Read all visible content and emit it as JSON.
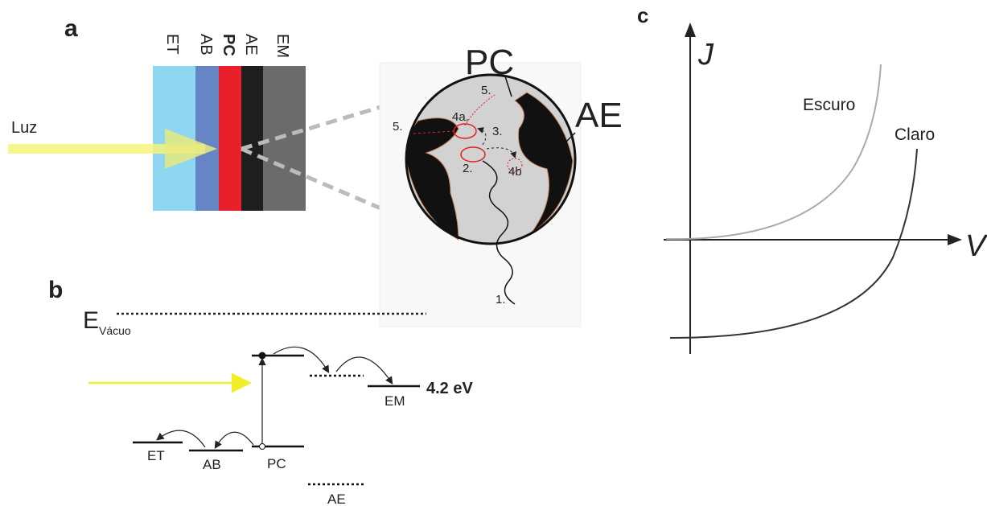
{
  "panels": {
    "a": {
      "label": "a",
      "layers": [
        "ET",
        "AB",
        "PC",
        "AE",
        "EM"
      ],
      "light": "Luz",
      "zoom_labels": {
        "pc": "PC",
        "ae": "AE"
      },
      "steps": [
        "5.",
        "4a.",
        "3.",
        "5.",
        "2.",
        "4b",
        "1."
      ]
    },
    "b": {
      "label": "b",
      "vacuum": {
        "symbol": "E",
        "subscript": "Vácuo"
      },
      "levels": [
        "ET",
        "AB",
        "PC",
        "EM",
        "AE"
      ],
      "energy": "4.2 eV"
    },
    "c": {
      "label": "c",
      "y_axis": "J",
      "x_axis": "V",
      "curves": [
        "Escuro",
        "Claro"
      ]
    }
  }
}
